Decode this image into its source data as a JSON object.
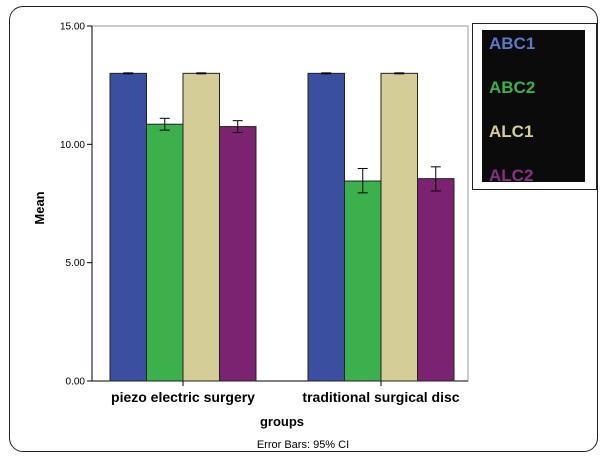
{
  "chart_data": {
    "type": "bar",
    "categories": [
      "piezo electric surgery",
      "traditional surgical disc"
    ],
    "series": [
      {
        "name": "ABC1",
        "color": "#3a4fa0",
        "values": [
          13.0,
          13.0
        ],
        "ci": [
          [
            12.98,
            13.02
          ],
          [
            12.98,
            13.02
          ]
        ]
      },
      {
        "name": "ABC2",
        "color": "#3bb04c",
        "values": [
          10.85,
          8.45
        ],
        "ci": [
          [
            10.6,
            11.1
          ],
          [
            7.95,
            8.98
          ]
        ]
      },
      {
        "name": "ALC1",
        "color": "#d4cd97",
        "values": [
          13.0,
          13.0
        ],
        "ci": [
          [
            12.98,
            13.02
          ],
          [
            12.98,
            13.02
          ]
        ]
      },
      {
        "name": "ALC2",
        "color": "#7b2370",
        "values": [
          10.75,
          8.55
        ],
        "ci": [
          [
            10.5,
            11.0
          ],
          [
            8.03,
            9.05
          ]
        ]
      }
    ],
    "xlabel": "groups",
    "ylabel": "Mean",
    "ylim": [
      0,
      15
    ],
    "yticks": [
      "0.00",
      "5.00",
      "10.00",
      "15.00"
    ],
    "legend_position": "top-right",
    "footnote": "Error Bars: 95% CI"
  }
}
